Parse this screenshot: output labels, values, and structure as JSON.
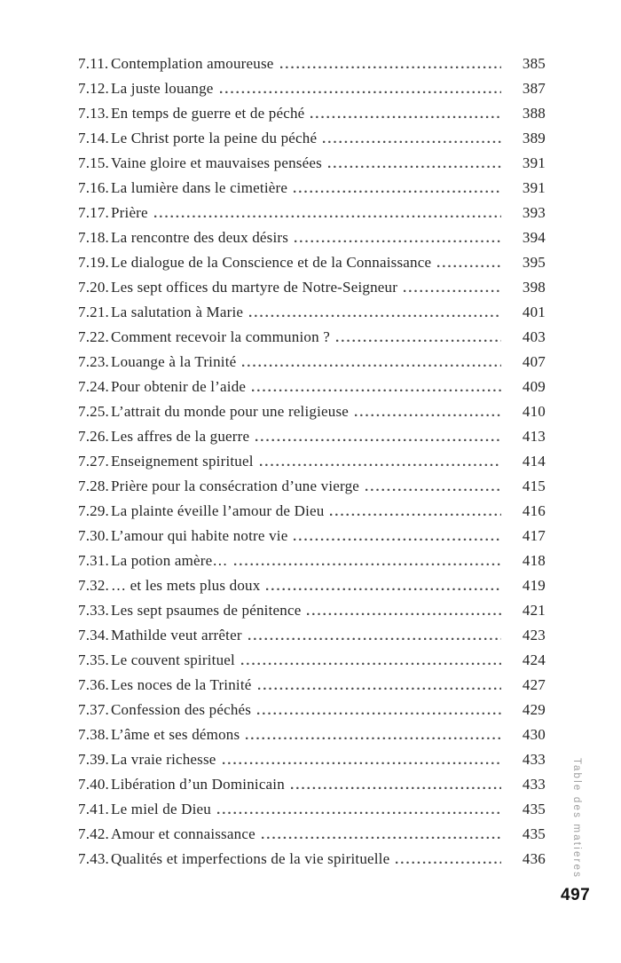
{
  "page": {
    "number": "497",
    "sidebar_label": "Table des matieres"
  },
  "colors": {
    "text": "#242424",
    "dot_leader": "#4c4c4c",
    "sidebar_label": "#9d9d9d",
    "folio": "#111111",
    "background": "#ffffff"
  },
  "toc": {
    "entries": [
      {
        "num": "7.11.",
        "title": "Contemplation amoureuse",
        "page": "385"
      },
      {
        "num": "7.12.",
        "title": "La juste louange",
        "page": "387"
      },
      {
        "num": "7.13.",
        "title": "En temps de guerre et de péché",
        "page": "388"
      },
      {
        "num": "7.14.",
        "title": "Le Christ porte la peine du péché",
        "page": "389"
      },
      {
        "num": "7.15.",
        "title": "Vaine gloire et mauvaises pensées",
        "page": "391"
      },
      {
        "num": "7.16.",
        "title": "La lumière dans le cimetière",
        "page": "391"
      },
      {
        "num": "7.17.",
        "title": "Prière",
        "page": "393"
      },
      {
        "num": "7.18.",
        "title": "La rencontre des deux désirs",
        "page": "394"
      },
      {
        "num": "7.19.",
        "title": "Le dialogue de la Conscience et de la Connaissance",
        "page": "395"
      },
      {
        "num": "7.20.",
        "title": "Les sept offices du martyre de Notre-Seigneur",
        "page": "398"
      },
      {
        "num": "7.21.",
        "title": "La salutation à Marie",
        "page": "401"
      },
      {
        "num": "7.22.",
        "title": "Comment recevoir la communion ?",
        "page": "403"
      },
      {
        "num": "7.23.",
        "title": "Louange à la Trinité",
        "page": "407"
      },
      {
        "num": "7.24.",
        "title": "Pour obtenir de l’aide",
        "page": "409"
      },
      {
        "num": "7.25.",
        "title": "L’attrait du monde pour une religieuse",
        "page": "410"
      },
      {
        "num": "7.26.",
        "title": "Les affres de la guerre",
        "page": "413"
      },
      {
        "num": "7.27.",
        "title": "Enseignement spirituel",
        "page": "414"
      },
      {
        "num": "7.28.",
        "title": "Prière pour la consécration d’une vierge",
        "page": "415"
      },
      {
        "num": "7.29.",
        "title": "La plainte éveille l’amour de Dieu",
        "page": "416"
      },
      {
        "num": "7.30.",
        "title": "L’amour qui habite notre vie",
        "page": "417"
      },
      {
        "num": "7.31.",
        "title": "La potion amère…",
        "page": "418"
      },
      {
        "num": "7.32.",
        "title": "… et les mets plus doux",
        "page": "419"
      },
      {
        "num": "7.33.",
        "title": "Les sept psaumes de pénitence",
        "page": "421"
      },
      {
        "num": "7.34.",
        "title": "Mathilde veut arrêter",
        "page": "423"
      },
      {
        "num": "7.35.",
        "title": "Le couvent spirituel",
        "page": "424"
      },
      {
        "num": "7.36.",
        "title": "Les noces de la Trinité",
        "page": "427"
      },
      {
        "num": "7.37.",
        "title": "Confession des péchés",
        "page": "429"
      },
      {
        "num": "7.38.",
        "title": "L’âme et ses démons",
        "page": "430"
      },
      {
        "num": "7.39.",
        "title": "La vraie richesse",
        "page": "433"
      },
      {
        "num": "7.40.",
        "title": "Libération d’un Dominicain",
        "page": "433"
      },
      {
        "num": "7.41.",
        "title": "Le miel de Dieu",
        "page": "435"
      },
      {
        "num": "7.42.",
        "title": "Amour et connaissance",
        "page": "435"
      },
      {
        "num": "7.43.",
        "title": "Qualités et imperfections de la vie spirituelle",
        "page": "436"
      }
    ]
  }
}
